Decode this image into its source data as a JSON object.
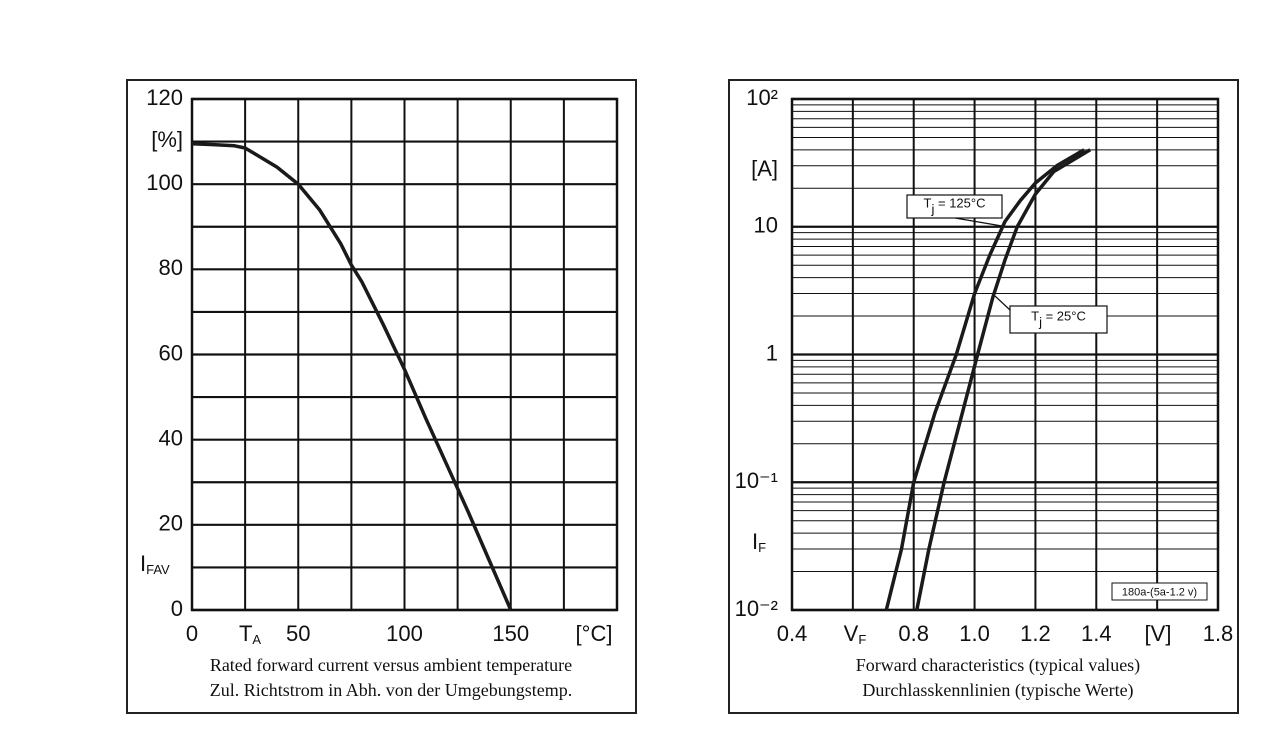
{
  "chart_data": [
    {
      "type": "line",
      "caption": [
        "Rated forward current versus ambient temperature",
        "Zul. Richtstrom in Abh. von der Umgebungstemp."
      ],
      "xlabel": {
        "main": "T",
        "sub": "A"
      },
      "xunit": "[°C]",
      "ylabel": {
        "main": "I",
        "sub": "FAV"
      },
      "yunit": "[%]",
      "xlim": [
        0,
        200
      ],
      "xticks": [
        0,
        50,
        100,
        150
      ],
      "ylim": [
        0,
        120
      ],
      "yticks": [
        0,
        20,
        40,
        60,
        80,
        100,
        120
      ],
      "xgrid": [
        0,
        25,
        50,
        75,
        100,
        125,
        150,
        175,
        200
      ],
      "ygrid": [
        0,
        10,
        20,
        30,
        40,
        50,
        60,
        70,
        80,
        90,
        100,
        110,
        120
      ],
      "series": [
        {
          "color": "#1a1a1a",
          "x": [
            0,
            10,
            20,
            25,
            30,
            40,
            50,
            60,
            70,
            75,
            80,
            90,
            100,
            110,
            120,
            130,
            140,
            150
          ],
          "values": [
            109.5,
            109.3,
            109,
            108.5,
            107,
            104,
            100,
            94,
            86,
            81,
            77,
            67,
            56.5,
            45,
            34,
            23,
            11.5,
            0
          ]
        }
      ]
    },
    {
      "type": "line",
      "log_y": true,
      "caption": [
        "Forward characteristics (typical values)",
        "Durchlasskennlinien (typische Werte)"
      ],
      "xlabel": {
        "main": "V",
        "sub": "F"
      },
      "xunit": "[V]",
      "ylabel": {
        "main": "I",
        "sub": "F"
      },
      "yunit": "[A]",
      "note": "180a-(5a-1.2 v)",
      "xlim": [
        0.4,
        1.8
      ],
      "xticks": [
        0.4,
        0.8,
        {
          "value": 1,
          "label": "1.0"
        },
        1.2,
        1.4,
        1.8
      ],
      "ylim": [
        0.01,
        100
      ],
      "yticks": [
        {
          "value": 0.01,
          "label": "10⁻²"
        },
        {
          "value": 0.1,
          "label": "10⁻¹"
        },
        1,
        10,
        {
          "value": 100,
          "label": "10²"
        }
      ],
      "xgrid": [
        0.4,
        0.6,
        0.8,
        1.0,
        1.2,
        1.4,
        1.6,
        1.8
      ],
      "ygrid": [
        0.01,
        0.02,
        0.03,
        0.04,
        0.05,
        0.06,
        0.07,
        0.08,
        0.09,
        0.1,
        0.2,
        0.3,
        0.4,
        0.5,
        0.6,
        0.7,
        0.8,
        0.9,
        1,
        2,
        3,
        4,
        5,
        6,
        7,
        8,
        9,
        10,
        20,
        30,
        40,
        50,
        60,
        70,
        80,
        90,
        100
      ],
      "series": [
        {
          "name": {
            "main": "T",
            "sub": "j",
            "rest": " = 125°C"
          },
          "color": "#1a1a1a",
          "x": [
            0.71,
            0.76,
            0.8,
            0.87,
            0.94,
            1.0,
            1.05,
            1.1,
            1.15,
            1.2,
            1.27,
            1.36
          ],
          "values": [
            0.01,
            0.03,
            0.1,
            0.35,
            1,
            3,
            6,
            11,
            16,
            22,
            30,
            40
          ]
        },
        {
          "name": {
            "main": "T",
            "sub": "j",
            "rest": " = 25°C"
          },
          "color": "#1a1a1a",
          "x": [
            0.81,
            0.85,
            0.9,
            0.96,
            1.01,
            1.06,
            1.1,
            1.14,
            1.2,
            1.26,
            1.38
          ],
          "values": [
            0.01,
            0.03,
            0.1,
            0.35,
            1,
            2.8,
            5.5,
            10,
            18,
            27,
            40
          ]
        }
      ]
    }
  ]
}
